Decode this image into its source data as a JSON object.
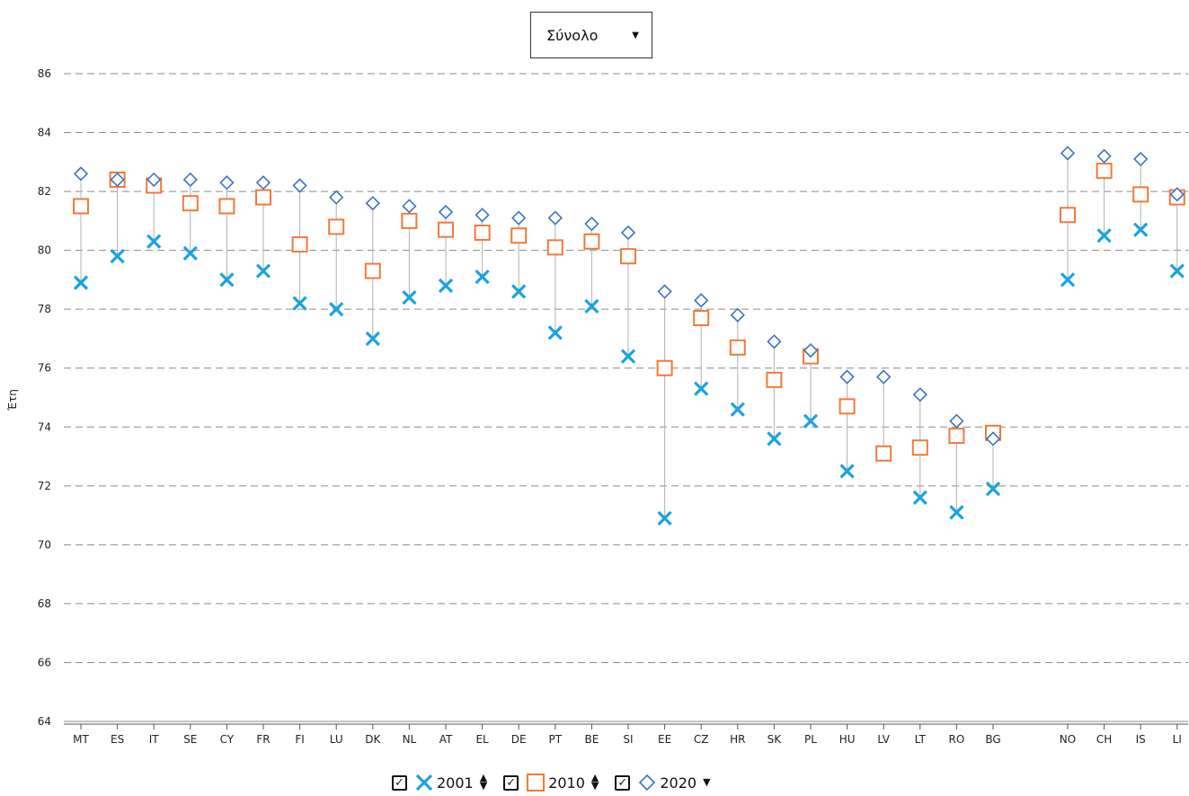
{
  "dropdown": {
    "selected": "Σύνολο",
    "caret_icon": "caret-down-icon"
  },
  "chart_data": {
    "type": "scatter",
    "ylabel": "Έτη",
    "ylim": [
      64,
      86
    ],
    "yticks": [
      64,
      66,
      68,
      70,
      72,
      74,
      76,
      78,
      80,
      82,
      84,
      86
    ],
    "grid": true,
    "legend_position": "bottom",
    "categories": [
      "MT",
      "ES",
      "IT",
      "SE",
      "CY",
      "FR",
      "FI",
      "LU",
      "DK",
      "NL",
      "AT",
      "EL",
      "DE",
      "PT",
      "BE",
      "SI",
      "EE",
      "CZ",
      "HR",
      "SK",
      "PL",
      "HU",
      "LV",
      "LT",
      "RO",
      "BG",
      "NO",
      "CH",
      "IS",
      "LI"
    ],
    "group_gap_after": "BG",
    "series": [
      {
        "name": "2001",
        "marker": "x",
        "color": "#1aa3e0",
        "values": [
          78.9,
          79.8,
          80.3,
          79.9,
          79.0,
          79.3,
          78.2,
          78.0,
          77.0,
          78.4,
          78.8,
          79.1,
          78.6,
          77.2,
          78.1,
          76.4,
          70.9,
          75.3,
          74.6,
          73.6,
          74.2,
          72.5,
          null,
          71.6,
          71.1,
          71.9,
          79.0,
          80.5,
          80.7,
          79.3
        ]
      },
      {
        "name": "2010",
        "marker": "square",
        "color": "#f07a3a",
        "values": [
          81.5,
          82.4,
          82.2,
          81.6,
          81.5,
          81.8,
          80.2,
          80.8,
          79.3,
          81.0,
          80.7,
          80.6,
          80.5,
          80.1,
          80.3,
          79.8,
          76.0,
          77.7,
          76.7,
          75.6,
          76.4,
          74.7,
          73.1,
          73.3,
          73.7,
          73.8,
          81.2,
          82.7,
          81.9,
          81.8
        ]
      },
      {
        "name": "2020",
        "marker": "diamond",
        "color": "#3d74c0",
        "values": [
          82.6,
          82.4,
          82.4,
          82.4,
          82.3,
          82.3,
          82.2,
          81.8,
          81.6,
          81.5,
          81.3,
          81.2,
          81.1,
          81.1,
          80.9,
          80.6,
          78.6,
          78.3,
          77.8,
          76.9,
          76.6,
          75.7,
          75.7,
          75.1,
          74.2,
          73.6,
          83.3,
          83.2,
          83.1,
          81.9
        ]
      }
    ]
  },
  "legend": {
    "items": [
      {
        "label": "2001",
        "checked_icon": "checkbox-checked-icon",
        "sort_icon": "sort-updown-icon"
      },
      {
        "label": "2010",
        "checked_icon": "checkbox-checked-icon",
        "sort_icon": "sort-updown-icon"
      },
      {
        "label": "2020",
        "checked_icon": "checkbox-checked-icon",
        "sort_icon": "sort-down-icon"
      }
    ]
  }
}
